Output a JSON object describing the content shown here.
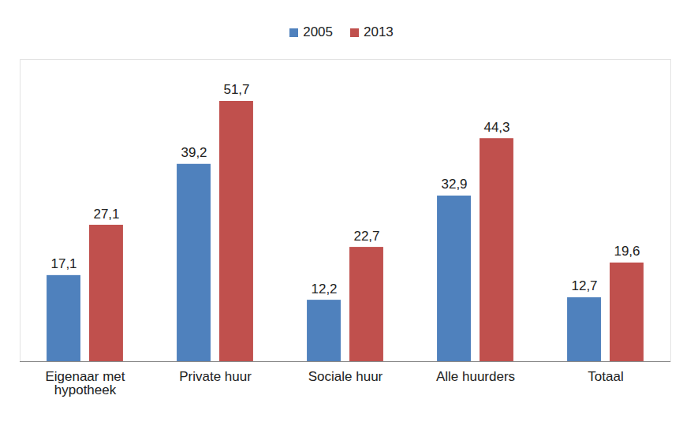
{
  "chart_data": {
    "type": "bar",
    "categories": [
      "Eigenaar met hypotheek",
      "Private huur",
      "Sociale huur",
      "Alle huurders",
      "Totaal"
    ],
    "series": [
      {
        "name": "2005",
        "color": "#4F81BD",
        "values": [
          17.1,
          39.2,
          12.2,
          32.9,
          12.7
        ],
        "value_labels": [
          "17,1",
          "39,2",
          "12,2",
          "32,9",
          "12,7"
        ]
      },
      {
        "name": "2013",
        "color": "#C0504D",
        "values": [
          27.1,
          51.7,
          22.7,
          44.3,
          19.6
        ],
        "value_labels": [
          "27,1",
          "51,7",
          "22,7",
          "44,3",
          "19,6"
        ]
      }
    ],
    "ylim": [
      0,
      60
    ],
    "data_labels": true,
    "tick_labels": "x",
    "legend": "top",
    "grid": false
  }
}
